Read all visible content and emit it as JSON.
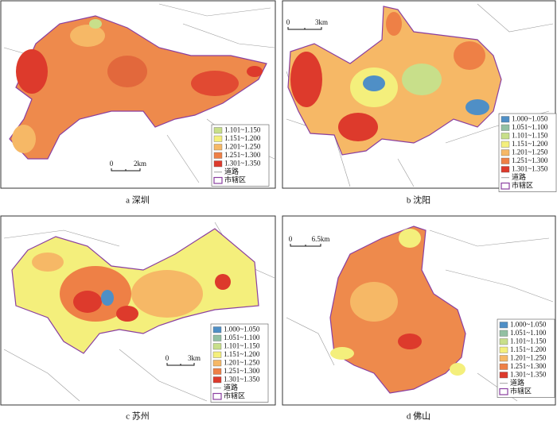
{
  "panels": [
    {
      "caption": "a 深圳",
      "scale": [
        "0",
        "2km"
      ],
      "legend": {
        "items": [
          {
            "label": "1.101~1.150",
            "color": "#c8df8a"
          },
          {
            "label": "1.151~1.200",
            "color": "#f4ef7c"
          },
          {
            "label": "1.201~1.250",
            "color": "#f6b866"
          },
          {
            "label": "1.251~1.300",
            "color": "#ee8046"
          },
          {
            "label": "1.301~1.350",
            "color": "#dd3a2c"
          }
        ],
        "road": "道路",
        "district": "市辖区"
      }
    },
    {
      "caption": "b 沈阳",
      "scale": [
        "0",
        "3km"
      ],
      "legend": {
        "items": [
          {
            "label": "1.000~1.050",
            "color": "#4f8fc6"
          },
          {
            "label": "1.051~1.100",
            "color": "#92c0a3"
          },
          {
            "label": "1.101~1.150",
            "color": "#c8df8a"
          },
          {
            "label": "1.151~1.200",
            "color": "#f4ef7c"
          },
          {
            "label": "1.201~1.250",
            "color": "#f6b866"
          },
          {
            "label": "1.251~1.300",
            "color": "#ee8046"
          },
          {
            "label": "1.301~1.350",
            "color": "#dd3a2c"
          }
        ],
        "road": "道路",
        "district": "市辖区"
      }
    },
    {
      "caption": "c 苏州",
      "scale": [
        "0",
        "3km"
      ],
      "legend": {
        "items": [
          {
            "label": "1.000~1.050",
            "color": "#4f8fc6"
          },
          {
            "label": "1.051~1.100",
            "color": "#92c0a3"
          },
          {
            "label": "1.101~1.150",
            "color": "#c8df8a"
          },
          {
            "label": "1.151~1.200",
            "color": "#f4ef7c"
          },
          {
            "label": "1.201~1.250",
            "color": "#f6b866"
          },
          {
            "label": "1.251~1.300",
            "color": "#ee8046"
          },
          {
            "label": "1.301~1.350",
            "color": "#dd3a2c"
          }
        ],
        "road": "道路",
        "district": "市辖区"
      }
    },
    {
      "caption": "d 佛山",
      "scale": [
        "0",
        "6.5km"
      ],
      "legend": {
        "items": [
          {
            "label": "1.000~1.050",
            "color": "#4f8fc6"
          },
          {
            "label": "1.051~1.100",
            "color": "#92c0a3"
          },
          {
            "label": "1.101~1.150",
            "color": "#c8df8a"
          },
          {
            "label": "1.151~1.200",
            "color": "#f4ef7c"
          },
          {
            "label": "1.201~1.250",
            "color": "#f6b866"
          },
          {
            "label": "1.251~1.300",
            "color": "#ee8046"
          },
          {
            "label": "1.301~1.350",
            "color": "#dd3a2c"
          }
        ],
        "road": "道路",
        "district": "市辖区"
      }
    }
  ]
}
